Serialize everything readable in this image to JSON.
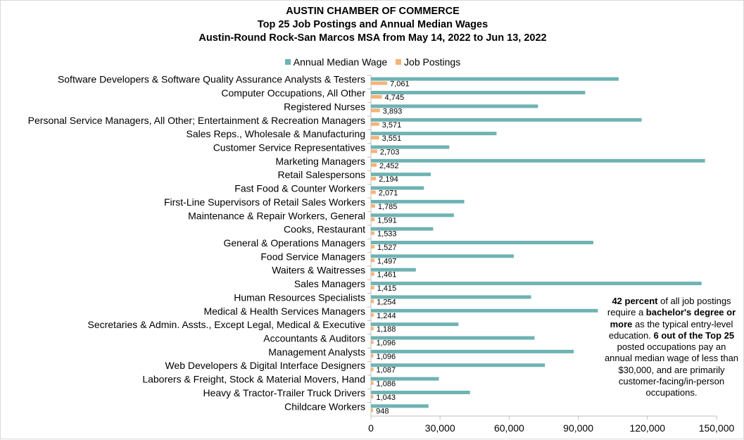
{
  "colors": {
    "wage": "#6fb3b3",
    "postings": "#f2b47a",
    "axis": "#bfbfbf"
  },
  "chart_data": {
    "type": "bar",
    "orientation": "horizontal",
    "title": [
      "AUSTIN CHAMBER OF COMMERCE",
      "Top 25 Job Postings and Annual Median Wages",
      "Austin-Round Rock-San Marcos MSA from May 14, 2022 to Jun 13, 2022"
    ],
    "legend_position": "top",
    "categories": [
      "Software Developers & Software Quality Assurance Analysts & Testers",
      "Computer Occupations, All Other",
      "Registered Nurses",
      "Personal Service Managers, All Other; Entertainment & Recreation Managers",
      "Sales Reps., Wholesale & Manufacturing",
      "Customer Service Representatives",
      "Marketing Managers",
      "Retail Salespersons",
      "Fast Food & Counter Workers",
      "First-Line Supervisors of Retail Sales Workers",
      "Maintenance & Repair Workers, General",
      "Cooks, Restaurant",
      "General & Operations Managers",
      "Food Service Managers",
      "Waiters & Waitresses",
      "Sales Managers",
      "Human Resources Specialists",
      "Medical & Health Services Managers",
      "Secretaries & Admin. Assts., Except Legal, Medical & Executive",
      "Accountants & Auditors",
      "Management Analysts",
      "Web Developers & Digital Interface Designers",
      "Laborers & Freight, Stock & Material Movers, Hand",
      "Heavy & Tractor-Trailer Truck Drivers",
      "Childcare Workers"
    ],
    "series": [
      {
        "name": "Annual Median Wage",
        "values": [
          107500,
          93000,
          72500,
          117500,
          54500,
          34000,
          145000,
          26000,
          23000,
          40500,
          36000,
          27000,
          96500,
          62000,
          19500,
          143500,
          69500,
          98500,
          38000,
          71000,
          88000,
          75500,
          29500,
          43000,
          25000
        ]
      },
      {
        "name": "Job Postings",
        "values": [
          7061,
          4745,
          3893,
          3571,
          3551,
          2703,
          2452,
          2194,
          2071,
          1785,
          1591,
          1533,
          1527,
          1497,
          1461,
          1415,
          1254,
          1244,
          1188,
          1096,
          1096,
          1087,
          1086,
          1043,
          948
        ],
        "labels": [
          "7,061",
          "4,745",
          "3,893",
          "3,571",
          "3,551",
          "2,703",
          "2,452",
          "2,194",
          "2,071",
          "1,785",
          "1,591",
          "1,533",
          "1,527",
          "1,497",
          "1,461",
          "1,415",
          "1,254",
          "1,244",
          "1,188",
          "1,096",
          "1,096",
          "1,087",
          "1,086",
          "1,043",
          "948"
        ]
      }
    ],
    "xlim": [
      0,
      150000
    ],
    "xticks": [
      0,
      30000,
      60000,
      90000,
      120000,
      150000
    ],
    "xtick_labels": [
      "0",
      "30,000",
      "60,000",
      "90,000",
      "120,000",
      "150,000"
    ],
    "grid": false
  },
  "note": {
    "t1": "42 percent",
    "t2": " of all job postings require a ",
    "t3": "bachelor's degree or more",
    "t4": " as the typical entry-level education. ",
    "t5": "6 out of the Top 25",
    "t6": " posted occupations pay an annual median wage of less than $30,000, and are primarily customer-facing/in-person occupations."
  }
}
